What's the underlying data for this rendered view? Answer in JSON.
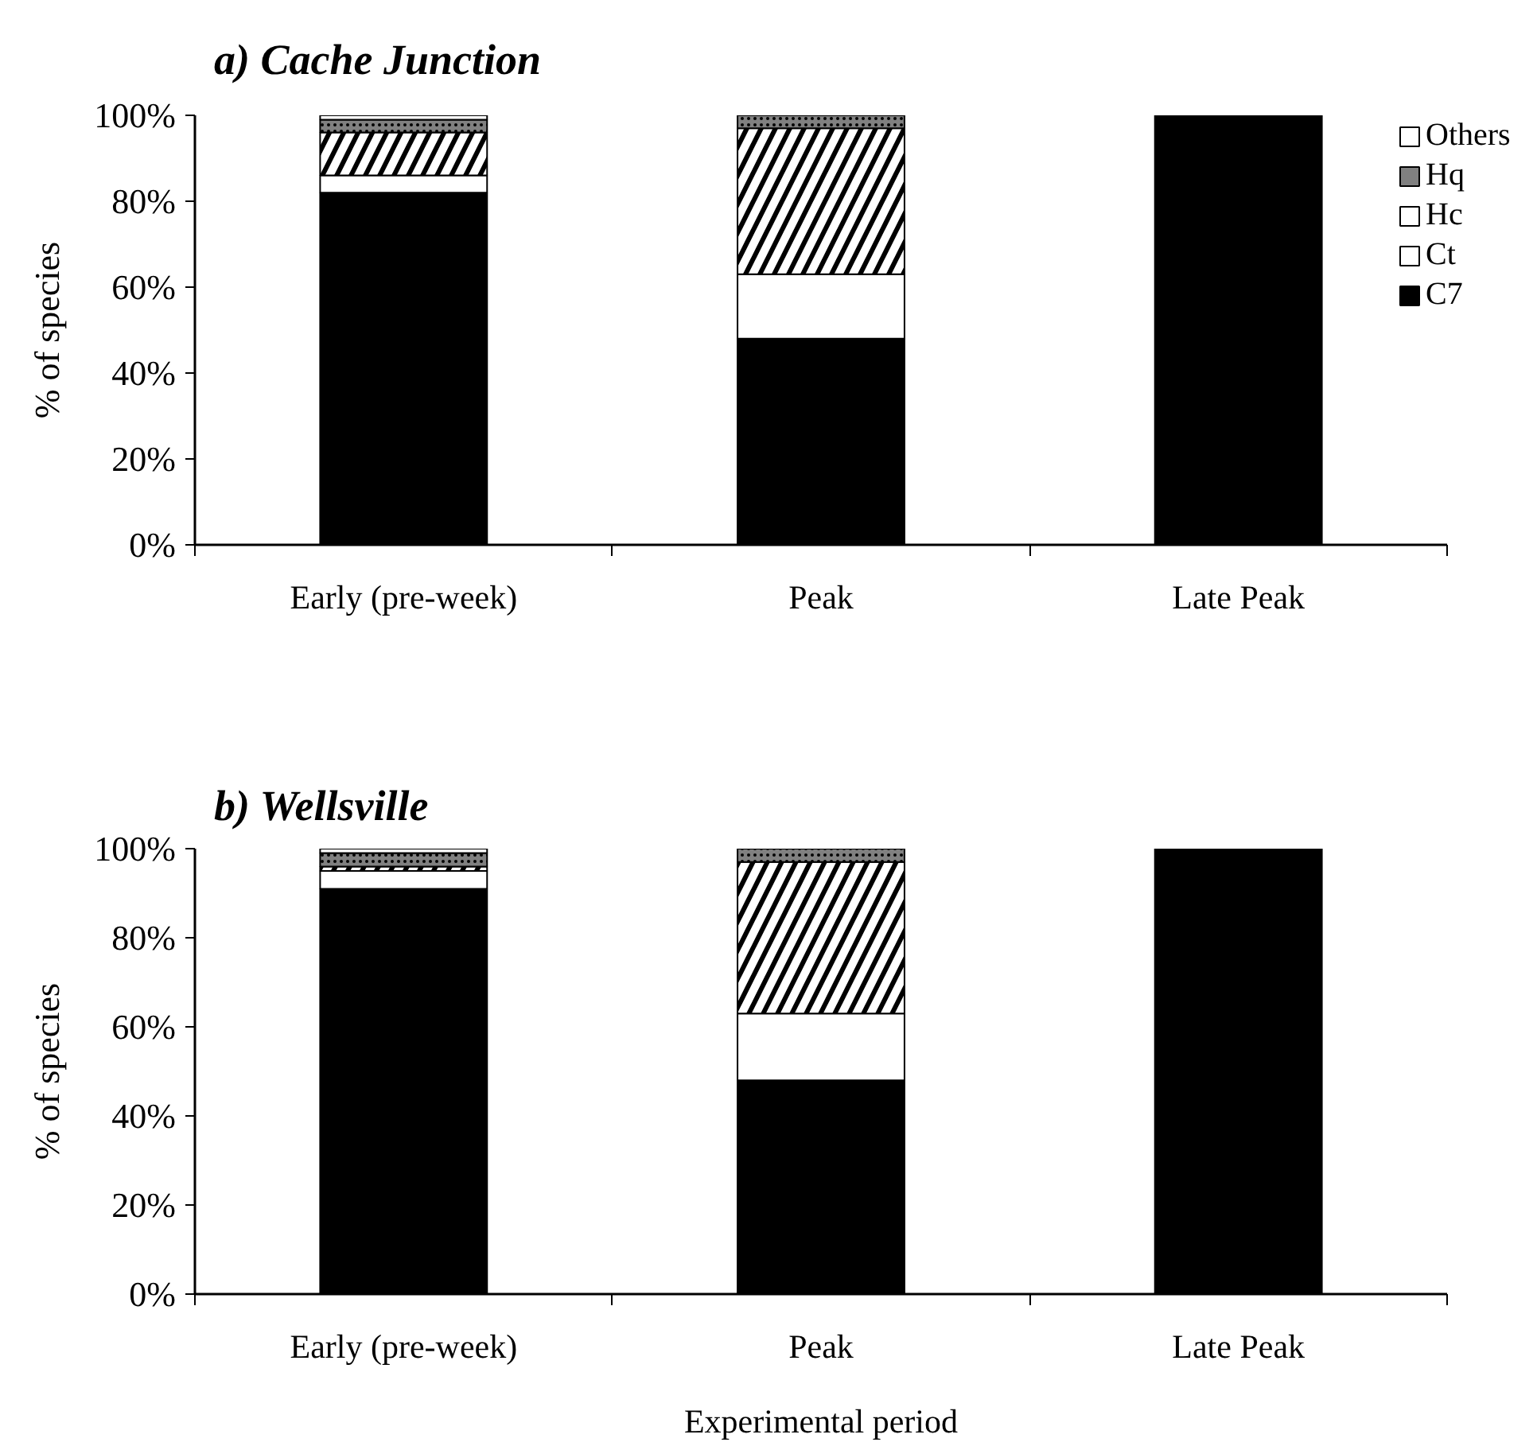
{
  "chart_data": [
    {
      "type": "bar",
      "title": "a) Cache Junction",
      "ylabel": "% of species",
      "categories": [
        "Early (pre-week)",
        "Peak",
        "Late Peak"
      ],
      "stacked": true,
      "series": [
        {
          "name": "C7",
          "color": "#000000",
          "values": [
            82,
            48,
            100
          ]
        },
        {
          "name": "Ct",
          "color": "#ffffff",
          "values": [
            4,
            15,
            0
          ]
        },
        {
          "name": "Hc",
          "color": "#ffffff",
          "values": [
            10,
            34,
            0
          ]
        },
        {
          "name": "Hq",
          "color": "#808080",
          "values": [
            3,
            3,
            0
          ]
        },
        {
          "name": "Others",
          "color": "#ffffff",
          "values": [
            1,
            0,
            0
          ]
        }
      ],
      "ylim": [
        0,
        100
      ],
      "yticks": [
        {
          "value": 0,
          "label": "0%"
        },
        {
          "value": 20,
          "label": "20%"
        },
        {
          "value": 40,
          "label": "40%"
        },
        {
          "value": 60,
          "label": "60%"
        },
        {
          "value": 80,
          "label": "80%"
        },
        {
          "value": 100,
          "label": "100%"
        }
      ],
      "legend": "top right"
    },
    {
      "type": "bar",
      "title": "b) Wellsville",
      "xlabel": "Experimental period",
      "ylabel": "% of species",
      "categories": [
        "Early (pre-week)",
        "Peak",
        "Late Peak"
      ],
      "stacked": true,
      "series": [
        {
          "color": "#000000",
          "values": [
            91,
            48,
            100
          ]
        },
        {
          "color": "#ffffff",
          "values": [
            4,
            15,
            0
          ]
        },
        {
          "color": "#ffffff",
          "values": [
            1,
            34,
            0
          ]
        },
        {
          "color": "#808080",
          "values": [
            3,
            3,
            0
          ]
        },
        {
          "color": "#ffffff",
          "values": [
            1,
            0,
            0
          ]
        }
      ],
      "ylim": [
        0,
        100
      ],
      "yticks": [
        {
          "value": 0,
          "label": "0%"
        },
        {
          "value": 20,
          "label": "20%"
        },
        {
          "value": 40,
          "label": "40%"
        },
        {
          "value": 60,
          "label": "60%"
        },
        {
          "value": 80,
          "label": "80%"
        },
        {
          "value": 100,
          "label": "100%"
        }
      ]
    }
  ]
}
